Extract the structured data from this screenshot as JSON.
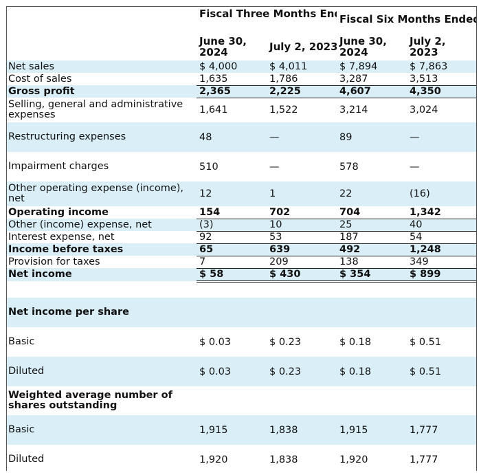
{
  "header": {
    "group_three": "Fiscal Three Months Ended",
    "group_six": "Fiscal Six Months Ended",
    "columns": [
      "June 30, 2024",
      "July 2, 2023",
      "June 30, 2024",
      "July 2, 2023"
    ]
  },
  "rows": [
    {
      "label": "Net sales",
      "values": [
        "$ 4,000",
        "$ 4,011",
        "$ 7,894",
        "$ 7,863"
      ]
    },
    {
      "label": "Cost of sales",
      "values": [
        "1,635",
        "1,786",
        "3,287",
        "3,513"
      ]
    },
    {
      "label": "Gross profit",
      "values": [
        "2,365",
        "2,225",
        "4,607",
        "4,350"
      ]
    },
    {
      "label": "Selling, general and administrative expenses",
      "values": [
        "1,641",
        "1,522",
        "3,214",
        "3,024"
      ]
    },
    {
      "label": "Restructuring expenses",
      "values": [
        "48",
        "—",
        "89",
        "—"
      ]
    },
    {
      "label": "Impairment charges",
      "values": [
        "510",
        "—",
        "578",
        "—"
      ]
    },
    {
      "label": "Other operating expense (income), net",
      "values": [
        "12",
        "1",
        "22",
        "(16)"
      ]
    },
    {
      "label": "Operating income",
      "values": [
        "154",
        "702",
        "704",
        "1,342"
      ]
    },
    {
      "label": "Other (income) expense, net",
      "values": [
        "(3)",
        "10",
        "25",
        "40"
      ]
    },
    {
      "label": "Interest expense, net",
      "values": [
        "92",
        "53",
        "187",
        "54"
      ]
    },
    {
      "label": "Income before taxes",
      "values": [
        "65",
        "639",
        "492",
        "1,248"
      ]
    },
    {
      "label": "Provision for taxes",
      "values": [
        "7",
        "209",
        "138",
        "349"
      ]
    },
    {
      "label": "Net income",
      "values": [
        "$ 58",
        "$ 430",
        "$ 354",
        "$ 899"
      ]
    },
    {
      "label": "Net income per share",
      "values": [
        "",
        "",
        "",
        ""
      ]
    },
    {
      "label": "Basic",
      "values": [
        "$ 0.03",
        "$ 0.23",
        "$ 0.18",
        "$ 0.51"
      ]
    },
    {
      "label": "Diluted",
      "values": [
        "$ 0.03",
        "$ 0.23",
        "$ 0.18",
        "$ 0.51"
      ]
    },
    {
      "label": "Weighted average number of shares outstanding",
      "values": [
        "",
        "",
        "",
        ""
      ]
    },
    {
      "label": "Basic",
      "values": [
        "1,915",
        "1,838",
        "1,915",
        "1,777"
      ]
    },
    {
      "label": "Diluted",
      "values": [
        "1,920",
        "1,838",
        "1,920",
        "1,777"
      ]
    }
  ]
}
